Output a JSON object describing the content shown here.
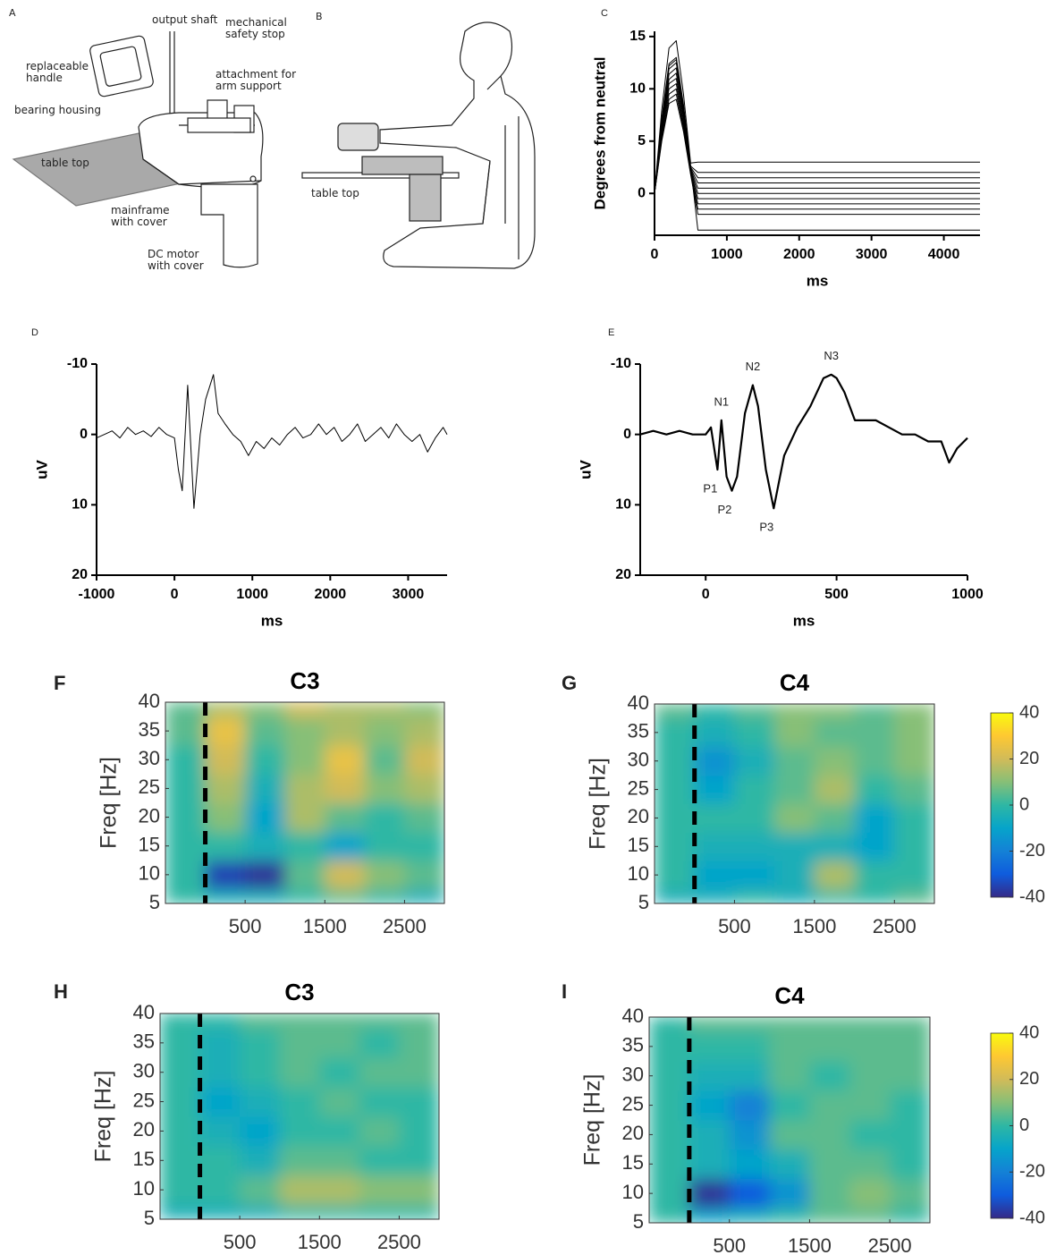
{
  "figure_panels": [
    {
      "letter": "A",
      "labels": [
        "output shaft",
        "mechanical safety stop",
        "replaceable handle",
        "attachment for arm support",
        "bearing housing",
        "table top",
        "mainframe with cover",
        "DC motor with cover"
      ]
    },
    {
      "letter": "B",
      "labels": [
        "table top"
      ]
    }
  ],
  "chart_data": [
    {
      "type": "line",
      "panel": "C",
      "ylabel": "Degrees from neutral",
      "xlabel": "ms",
      "color": "#000000",
      "x": [
        0,
        100,
        200,
        300,
        400,
        500,
        600,
        4500
      ],
      "series": [
        {
          "values": [
            0,
            8,
            13.9,
            14.6,
            9.5,
            2.9,
            3,
            3
          ]
        },
        {
          "values": [
            0,
            7.2,
            12.4,
            13,
            8.5,
            2.6,
            2,
            2
          ]
        },
        {
          "values": [
            0,
            6.9,
            11.9,
            12.5,
            8.1,
            2.5,
            1.5,
            1.5
          ]
        },
        {
          "values": [
            0,
            6.6,
            11.4,
            12,
            7.8,
            2.4,
            1,
            1
          ]
        },
        {
          "values": [
            0,
            6.3,
            10.9,
            11.5,
            7.5,
            2.3,
            0.5,
            0.5
          ]
        },
        {
          "values": [
            0,
            6,
            10.5,
            11,
            7.2,
            2.2,
            0,
            0
          ]
        },
        {
          "values": [
            0,
            5.8,
            10,
            10.5,
            6.8,
            2.1,
            -0.5,
            -0.5
          ]
        },
        {
          "values": [
            0,
            5.5,
            9.5,
            10,
            6.5,
            2,
            -1,
            -1
          ]
        },
        {
          "values": [
            0,
            5.2,
            9,
            9.5,
            6.2,
            1.9,
            -1.5,
            -1.5
          ]
        },
        {
          "values": [
            0,
            5,
            8.6,
            9,
            5.9,
            1.8,
            -2,
            -2
          ]
        },
        {
          "values": [
            0,
            7,
            12.2,
            12.8,
            8.3,
            2.6,
            -3.5,
            -3.5
          ]
        }
      ],
      "xlim": [
        0,
        4500
      ],
      "xticks": [
        0,
        1000,
        2000,
        3000,
        4000
      ],
      "ylim": [
        -4,
        15.5
      ],
      "yticks": [
        0,
        5,
        10,
        15
      ],
      "line_width": 1
    },
    {
      "type": "line",
      "panel": "D",
      "ylabel": "uV",
      "xlabel": "ms",
      "color": "#000000",
      "x": [
        -1000,
        -900,
        -800,
        -700,
        -600,
        -500,
        -400,
        -300,
        -200,
        -100,
        0,
        50,
        100,
        170,
        250,
        330,
        400,
        500,
        560,
        650,
        750,
        850,
        950,
        1050,
        1150,
        1250,
        1350,
        1450,
        1550,
        1650,
        1750,
        1850,
        1950,
        2050,
        2150,
        2250,
        2350,
        2450,
        2550,
        2650,
        2750,
        2850,
        2950,
        3050,
        3150,
        3250,
        3350,
        3450,
        3500
      ],
      "values": [
        0.5,
        0,
        -0.5,
        0.5,
        -1,
        0,
        -0.5,
        0.3,
        -1,
        0,
        0.5,
        5,
        8,
        -7,
        10.5,
        0,
        -5,
        -8.5,
        -3,
        -1.5,
        0,
        1,
        3,
        1,
        2,
        0.5,
        1.5,
        0,
        -1,
        0.5,
        0,
        -1.5,
        0,
        -1,
        1,
        0,
        -1.5,
        1,
        0,
        -1,
        0.5,
        -1.5,
        0,
        1,
        0,
        2.5,
        0.5,
        -1,
        0
      ],
      "xlim": [
        -1000,
        3500
      ],
      "xticks": [
        -1000,
        0,
        1000,
        2000,
        3000
      ],
      "ylim": [
        20,
        -10
      ],
      "yticks": [
        -10,
        0,
        10,
        20
      ],
      "line_width": 1
    },
    {
      "type": "line",
      "panel": "E",
      "ylabel": "uV",
      "xlabel": "ms",
      "color": "#000000",
      "x": [
        -250,
        -200,
        -150,
        -100,
        -50,
        0,
        20,
        45,
        60,
        80,
        100,
        120,
        150,
        180,
        200,
        230,
        260,
        300,
        350,
        400,
        450,
        480,
        500,
        530,
        570,
        600,
        650,
        700,
        750,
        800,
        850,
        900,
        930,
        960,
        1000
      ],
      "values": [
        0,
        -0.5,
        0,
        -0.5,
        0,
        0,
        -1,
        5,
        -2,
        6,
        8,
        6,
        -3,
        -7,
        -4,
        5,
        10.5,
        3,
        -1,
        -4,
        -8,
        -8.5,
        -8,
        -6,
        -2,
        -2,
        -2,
        -1,
        0,
        0,
        1,
        1,
        4,
        2,
        0.5
      ],
      "xlim": [
        -250,
        1000
      ],
      "xticks": [
        0,
        500,
        1000
      ],
      "ylim": [
        20,
        -10
      ],
      "yticks": [
        -10,
        0,
        10,
        20
      ],
      "line_width": 2.2,
      "annotations": [
        {
          "text": "N1",
          "x": 60,
          "y": -2
        },
        {
          "text": "N2",
          "x": 180,
          "y": -7
        },
        {
          "text": "N3",
          "x": 480,
          "y": -8.5
        },
        {
          "text": "P1",
          "x": 45,
          "y": 5
        },
        {
          "text": "P2",
          "x": 100,
          "y": 8
        },
        {
          "text": "P3",
          "x": 260,
          "y": 10.5
        }
      ]
    },
    {
      "type": "heatmap",
      "panel": "F",
      "title": "C3",
      "ylabel": "Freq [Hz]",
      "x_bins": [
        -500,
        0,
        500,
        1000,
        1500,
        2000,
        2500,
        3000
      ],
      "y_bins": [
        5,
        7.5,
        12.5,
        17.5,
        22.5,
        27.5,
        32.5,
        37.5,
        40
      ],
      "values": [
        [
          0,
          -5,
          -5,
          0,
          5,
          0,
          -5
        ],
        [
          0,
          -35,
          -38,
          5,
          20,
          10,
          5
        ],
        [
          0,
          0,
          -5,
          0,
          -10,
          0,
          0
        ],
        [
          0,
          10,
          -10,
          15,
          5,
          0,
          5
        ],
        [
          0,
          15,
          -5,
          15,
          20,
          10,
          15
        ],
        [
          0,
          20,
          0,
          10,
          25,
          5,
          20
        ],
        [
          5,
          25,
          5,
          10,
          15,
          10,
          15
        ],
        [
          5,
          15,
          10,
          20,
          15,
          15,
          10
        ]
      ],
      "xlim": [
        -500,
        3000
      ],
      "xticks": [
        500,
        1500,
        2500
      ],
      "ylim": [
        5,
        40
      ],
      "yticks": [
        5,
        10,
        15,
        20,
        25,
        30,
        35,
        40
      ],
      "vline": 0,
      "clim": [
        -40,
        40
      ],
      "colormap": [
        "#352a87",
        "#0f5cdd",
        "#1481d6",
        "#06a4ca",
        "#2eb7a4",
        "#87bf77",
        "#d1bb59",
        "#fec832",
        "#f9fb0e"
      ]
    },
    {
      "type": "heatmap",
      "panel": "G",
      "title": "C4",
      "ylabel": "Freq [Hz]",
      "x_bins": [
        -500,
        0,
        500,
        1000,
        1500,
        2000,
        2500,
        3000
      ],
      "y_bins": [
        5,
        7.5,
        12.5,
        17.5,
        22.5,
        27.5,
        32.5,
        37.5,
        40
      ],
      "values": [
        [
          -5,
          -5,
          0,
          -5,
          0,
          0,
          5
        ],
        [
          0,
          -10,
          -10,
          -5,
          15,
          0,
          0
        ],
        [
          0,
          -5,
          -5,
          -5,
          -5,
          -10,
          0
        ],
        [
          0,
          0,
          0,
          10,
          5,
          -10,
          0
        ],
        [
          0,
          -10,
          0,
          5,
          15,
          0,
          5
        ],
        [
          0,
          -15,
          -5,
          5,
          10,
          5,
          10
        ],
        [
          0,
          -5,
          0,
          10,
          5,
          5,
          10
        ],
        [
          5,
          0,
          5,
          10,
          10,
          5,
          10
        ]
      ],
      "xlim": [
        -500,
        3000
      ],
      "xticks": [
        500,
        1500,
        2500
      ],
      "ylim": [
        5,
        40
      ],
      "yticks": [
        5,
        10,
        15,
        20,
        25,
        30,
        35,
        40
      ],
      "vline": 0,
      "clim": [
        -40,
        40
      ],
      "colorbar_ticks": [
        -40,
        -20,
        0,
        20,
        40
      ],
      "colormap": [
        "#352a87",
        "#0f5cdd",
        "#1481d6",
        "#06a4ca",
        "#2eb7a4",
        "#87bf77",
        "#d1bb59",
        "#fec832",
        "#f9fb0e"
      ]
    },
    {
      "type": "heatmap",
      "panel": "H",
      "title": "C3",
      "ylabel": "Freq [Hz]",
      "x_bins": [
        -500,
        0,
        500,
        1000,
        1500,
        2000,
        2500,
        3000
      ],
      "y_bins": [
        5,
        7.5,
        12.5,
        17.5,
        22.5,
        27.5,
        32.5,
        37.5,
        40
      ],
      "values": [
        [
          -5,
          -5,
          -5,
          0,
          0,
          0,
          0
        ],
        [
          0,
          0,
          5,
          15,
          15,
          10,
          10
        ],
        [
          0,
          0,
          -5,
          5,
          5,
          0,
          0
        ],
        [
          0,
          -5,
          -10,
          0,
          0,
          5,
          0
        ],
        [
          0,
          -10,
          -5,
          0,
          5,
          0,
          0
        ],
        [
          0,
          -5,
          0,
          5,
          0,
          5,
          5
        ],
        [
          0,
          -5,
          0,
          5,
          5,
          0,
          5
        ],
        [
          0,
          0,
          5,
          5,
          5,
          5,
          5
        ]
      ],
      "xlim": [
        -500,
        3000
      ],
      "xticks": [
        500,
        1500,
        2500
      ],
      "ylim": [
        5,
        40
      ],
      "yticks": [
        5,
        10,
        15,
        20,
        25,
        30,
        35,
        40
      ],
      "vline": 0,
      "clim": [
        -40,
        40
      ],
      "colormap": [
        "#352a87",
        "#0f5cdd",
        "#1481d6",
        "#06a4ca",
        "#2eb7a4",
        "#87bf77",
        "#d1bb59",
        "#fec832",
        "#f9fb0e"
      ]
    },
    {
      "type": "heatmap",
      "panel": "I",
      "title": "C4",
      "ylabel": "Freq [Hz]",
      "x_bins": [
        -500,
        0,
        500,
        1000,
        1500,
        2000,
        2500,
        3000
      ],
      "y_bins": [
        5,
        7.5,
        12.5,
        17.5,
        22.5,
        27.5,
        32.5,
        37.5,
        40
      ],
      "values": [
        [
          0,
          -10,
          -5,
          0,
          5,
          5,
          0
        ],
        [
          0,
          -38,
          -30,
          -15,
          5,
          10,
          5
        ],
        [
          0,
          -5,
          -10,
          -5,
          5,
          5,
          0
        ],
        [
          0,
          -5,
          -15,
          5,
          5,
          0,
          0
        ],
        [
          0,
          -10,
          -20,
          0,
          5,
          5,
          0
        ],
        [
          0,
          -5,
          -5,
          5,
          0,
          5,
          5
        ],
        [
          0,
          0,
          0,
          5,
          5,
          5,
          5
        ],
        [
          0,
          5,
          5,
          5,
          5,
          5,
          5
        ]
      ],
      "xlim": [
        -500,
        3000
      ],
      "xticks": [
        500,
        1500,
        2500
      ],
      "ylim": [
        5,
        40
      ],
      "yticks": [
        5,
        10,
        15,
        20,
        25,
        30,
        35,
        40
      ],
      "vline": 0,
      "clim": [
        -40,
        40
      ],
      "colorbar_ticks": [
        -40,
        -20,
        0,
        20,
        40
      ],
      "colormap": [
        "#352a87",
        "#0f5cdd",
        "#1481d6",
        "#06a4ca",
        "#2eb7a4",
        "#87bf77",
        "#d1bb59",
        "#fec832",
        "#f9fb0e"
      ]
    }
  ]
}
